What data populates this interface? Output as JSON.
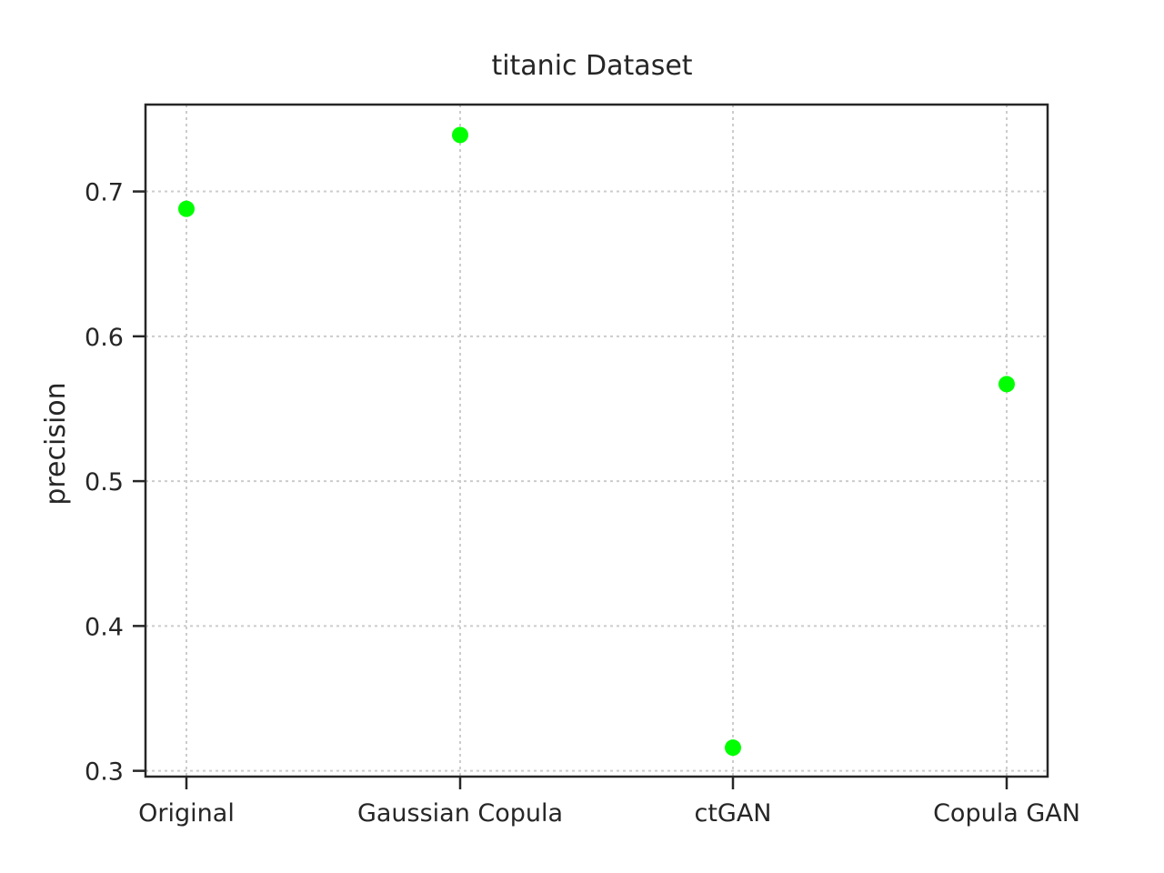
{
  "chart_data": {
    "type": "scatter",
    "title": "titanic Dataset",
    "xlabel": "",
    "ylabel": "precision",
    "categories": [
      "Original",
      "Gaussian Copula",
      "ctGAN",
      "Copula GAN"
    ],
    "series": [
      {
        "values": [
          0.688,
          0.739,
          0.316,
          0.567
        ]
      }
    ],
    "ylim": [
      0.296,
      0.76
    ],
    "yticks": [
      0.3,
      0.4,
      0.5,
      0.6,
      0.7
    ],
    "ytick_labels": [
      "0.3",
      "0.4",
      "0.5",
      "0.6",
      "0.7"
    ],
    "grid": true,
    "point_color": "#00ff00",
    "text_color": "#262626",
    "grid_color": "#cccccc"
  }
}
